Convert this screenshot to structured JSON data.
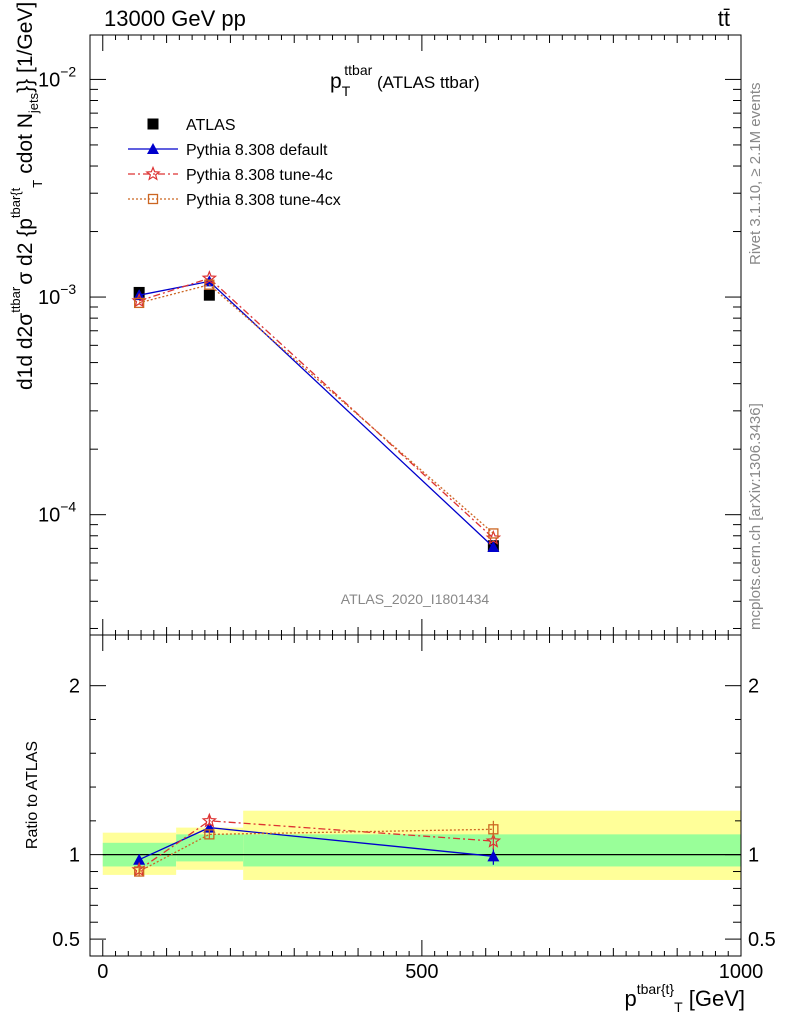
{
  "header": {
    "left": "13000 GeV pp",
    "right": "tt̄"
  },
  "side_labels": {
    "rivet": "Rivet 3.1.10, ≥ 2.1M events",
    "mcplots": "mcplots.cern.ch [arXiv:1306.3436]"
  },
  "chart_data": [
    {
      "type": "line",
      "panel": "main",
      "title_main": "p",
      "title_sub": "T",
      "title_sup": "ttbar",
      "title_rest": " (ATLAS ttbar)",
      "watermark": "ATLAS_2020_I1801434",
      "ylabel": "d¹d d²σᵗᵗᵇᵃʳ cdot N_jets}} [1/GeV]",
      "ylabel_parts": {
        "fraction": "d1d d2σ",
        "sup": "ttbar",
        "mid": "σ d2 {p",
        "midsup": "tbar{t",
        "sub": "T",
        "tail": "cdot N",
        "tailsub": "jets",
        "end": "}} [1/GeV]"
      },
      "yscale": "log",
      "ylim": [
        2.8e-05,
        0.016
      ],
      "xlim": [
        -20,
        1000
      ],
      "y_tick_labels": [
        {
          "value": 0.01,
          "base": "10",
          "exp": "−2"
        },
        {
          "value": 0.001,
          "base": "10",
          "exp": "−3"
        },
        {
          "value": 0.0001,
          "base": "10",
          "exp": "−4"
        }
      ],
      "legend": {
        "position": "top-left",
        "entries": [
          "ATLAS",
          "Pythia 8.308 default",
          "Pythia 8.308 tune-4c",
          "Pythia 8.308 tune-4cx"
        ]
      },
      "x": [
        57,
        167,
        612
      ],
      "series": [
        {
          "name": "ATLAS",
          "values": [
            0.00105,
            0.00102,
            7.2e-05
          ],
          "color": "#000000",
          "marker": "square"
        },
        {
          "name": "Pythia 8.308 default",
          "values": [
            0.00102,
            0.00118,
            7.1e-05
          ],
          "color": "#0000cc",
          "marker": "triangle"
        },
        {
          "name": "Pythia 8.308 tune-4c",
          "values": [
            0.00096,
            0.00122,
            7.8e-05
          ],
          "color": "#dd3333",
          "marker": "star"
        },
        {
          "name": "Pythia 8.308 tune-4cx",
          "values": [
            0.00094,
            0.00114,
            8.2e-05
          ],
          "color": "#cc6622",
          "marker": "open-square"
        }
      ]
    },
    {
      "type": "line",
      "panel": "ratio",
      "ylabel": "Ratio to ATLAS",
      "xlabel_main": "p",
      "xlabel_sup": "tbar{t}",
      "xlabel_sub": "T",
      "xlabel_rest": " [GeV]",
      "ylim": [
        0.4,
        2.3
      ],
      "xlim": [
        -20,
        1000
      ],
      "x_tick_labels": [
        {
          "value": 0,
          "label": "0"
        },
        {
          "value": 500,
          "label": "500"
        },
        {
          "value": 1000,
          "label": "1000"
        }
      ],
      "y_tick_labels": [
        {
          "value": 2,
          "label": "2"
        },
        {
          "value": 1,
          "label": "1"
        },
        {
          "value": 0.5,
          "label": "0.5"
        }
      ],
      "bands": [
        {
          "x": [
            0,
            115
          ],
          "inner": [
            0.93,
            1.07
          ],
          "outer": [
            0.88,
            1.13
          ]
        },
        {
          "x": [
            115,
            220
          ],
          "inner": [
            0.96,
            1.12
          ],
          "outer": [
            0.91,
            1.16
          ]
        },
        {
          "x": [
            220,
            1000
          ],
          "inner": [
            0.93,
            1.12
          ],
          "outer": [
            0.85,
            1.26
          ]
        }
      ],
      "x": [
        57,
        167,
        612
      ],
      "series": [
        {
          "name": "Pythia 8.308 default",
          "values": [
            0.97,
            1.16,
            0.99
          ],
          "errors": [
            0.03,
            0.03,
            0.05
          ],
          "color": "#0000cc",
          "marker": "triangle"
        },
        {
          "name": "Pythia 8.308 tune-4c",
          "values": [
            0.91,
            1.2,
            1.08
          ],
          "errors": [
            0.03,
            0.03,
            0.05
          ],
          "color": "#dd3333",
          "marker": "star"
        },
        {
          "name": "Pythia 8.308 tune-4cx",
          "values": [
            0.9,
            1.12,
            1.15
          ],
          "errors": [
            0.03,
            0.03,
            0.05
          ],
          "color": "#cc6622",
          "marker": "open-square"
        }
      ]
    }
  ]
}
